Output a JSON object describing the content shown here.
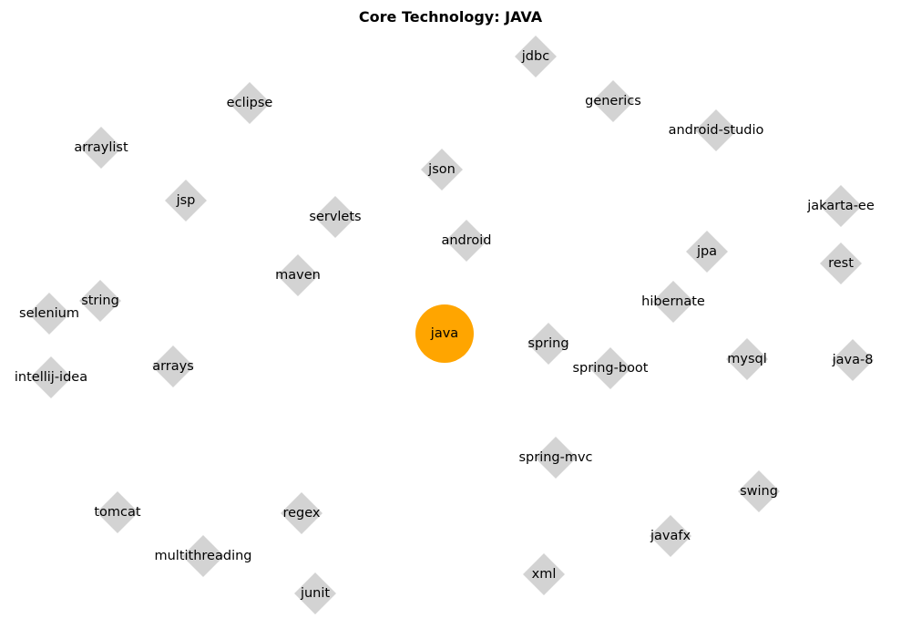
{
  "title": "Core Technology: JAVA",
  "colors": {
    "center_node": "#ffa500",
    "related_node": "#d3d3d3",
    "label": "#000000",
    "background": "#ffffff"
  },
  "center": {
    "label": "java",
    "shape": "circle"
  },
  "related": [
    {
      "label": "jdbc",
      "shape": "diamond"
    },
    {
      "label": "generics",
      "shape": "diamond"
    },
    {
      "label": "eclipse",
      "shape": "diamond"
    },
    {
      "label": "android-studio",
      "shape": "diamond"
    },
    {
      "label": "arraylist",
      "shape": "diamond"
    },
    {
      "label": "json",
      "shape": "diamond"
    },
    {
      "label": "jsp",
      "shape": "diamond"
    },
    {
      "label": "jakarta-ee",
      "shape": "diamond"
    },
    {
      "label": "servlets",
      "shape": "diamond"
    },
    {
      "label": "android",
      "shape": "diamond"
    },
    {
      "label": "jpa",
      "shape": "diamond"
    },
    {
      "label": "rest",
      "shape": "diamond"
    },
    {
      "label": "maven",
      "shape": "diamond"
    },
    {
      "label": "string",
      "shape": "diamond"
    },
    {
      "label": "hibernate",
      "shape": "diamond"
    },
    {
      "label": "selenium",
      "shape": "diamond"
    },
    {
      "label": "spring",
      "shape": "diamond"
    },
    {
      "label": "mysql",
      "shape": "diamond"
    },
    {
      "label": "java-8",
      "shape": "diamond"
    },
    {
      "label": "arrays",
      "shape": "diamond"
    },
    {
      "label": "spring-boot",
      "shape": "diamond"
    },
    {
      "label": "intellij-idea",
      "shape": "diamond"
    },
    {
      "label": "spring-mvc",
      "shape": "diamond"
    },
    {
      "label": "swing",
      "shape": "diamond"
    },
    {
      "label": "tomcat",
      "shape": "diamond"
    },
    {
      "label": "regex",
      "shape": "diamond"
    },
    {
      "label": "javafx",
      "shape": "diamond"
    },
    {
      "label": "multithreading",
      "shape": "diamond"
    },
    {
      "label": "xml",
      "shape": "diamond"
    },
    {
      "label": "junit",
      "shape": "diamond"
    }
  ]
}
